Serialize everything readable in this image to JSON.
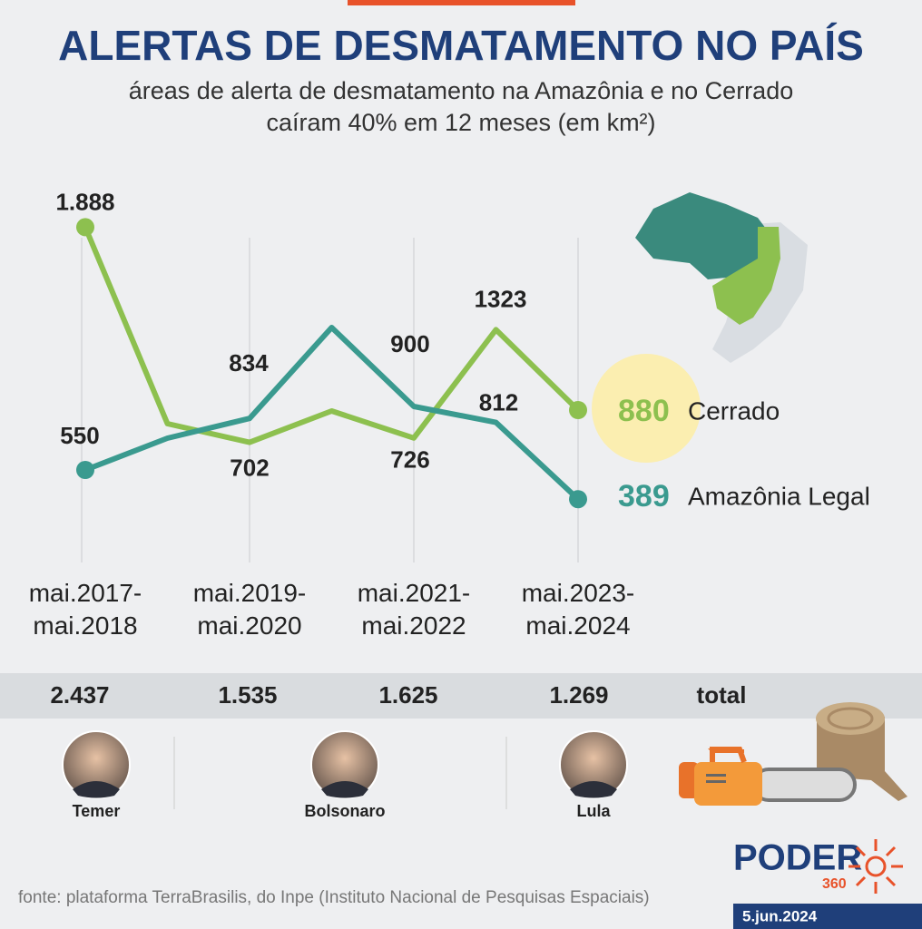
{
  "chart_data": {
    "type": "line",
    "title": "ALERTAS DE DESMATAMENTO NO PAÍS",
    "subtitle": [
      "áreas de alerta de desmatamento na Amazônia e no Cerrado",
      "caíram 40% em 12 meses (em km²)"
    ],
    "categories": [
      "mai.2017-mai.2018",
      null,
      "mai.2019-mai.2020",
      null,
      "mai.2021-mai.2022",
      null,
      "mai.2023-mai.2024"
    ],
    "series": [
      {
        "name": "Cerrado",
        "color": "#8dc04f",
        "values": [
          1888,
          805,
          702,
          875,
          726,
          1323,
          880
        ],
        "value_labels": [
          "1.888",
          null,
          null,
          null,
          null,
          null,
          null
        ]
      },
      {
        "name": "Amazônia Legal",
        "color": "#3a9a8f",
        "values": [
          550,
          725,
          834,
          1335,
          900,
          812,
          389
        ]
      }
    ],
    "ylim": [
      0,
      2000
    ],
    "grid": true,
    "totals": [
      {
        "value": 2437,
        "label": "2.437"
      },
      {
        "value": 1535,
        "label": "1.535"
      },
      {
        "value": 1625,
        "label": "1.625"
      },
      {
        "value": 1269,
        "label": "1.269"
      }
    ],
    "totals_label": "total",
    "presidents": [
      "Temer",
      "Bolsonaro",
      "Lula"
    ],
    "source": "fonte: plataforma TerraBrasilis, do Inpe (Instituto Nacional de Pesquisas Espaciais)",
    "logo": {
      "name": "PODER",
      "number": "360"
    },
    "date": "5.jun.2024"
  }
}
